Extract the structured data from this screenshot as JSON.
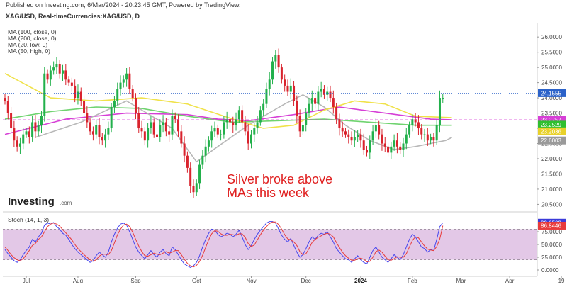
{
  "header": {
    "published": "Published on Investing.com, 6/Mar/2024 - 20:23:45 GMT, Powered by TradingView.",
    "symbol": "XAG/USD, Real-timeCurrencies:XAG/USD, D"
  },
  "indicators": [
    "MA (100, close, 0)",
    "MA (200, close, 0)",
    "MA (20, low, 0)",
    "MA (50, high, 0)"
  ],
  "annotation": {
    "line1": "Silver broke above",
    "line2": "MAs this week"
  },
  "logo": {
    "word": "Investing",
    "domain": ".com"
  },
  "colors": {
    "bull": "#22b04b",
    "bear": "#d9232d",
    "ma100": "#d63fd6",
    "ma200": "#6fd36f",
    "ma20": "#b8b8b8",
    "ma50": "#f0e24a",
    "annotation": "#e02020",
    "stoch_k": "#4444ee",
    "stoch_d": "#e83b3b",
    "stoch_band": "#d9b6df"
  },
  "chart_data": [
    {
      "type": "candlestick",
      "title": "XAG/USD, Real-timeCurrencies:XAG/USD, D",
      "x_labels": [
        "Jul",
        "Aug",
        "Sep",
        "Oct",
        "Nov",
        "Dec",
        "2024",
        "Feb",
        "Mar",
        "Apr",
        "19"
      ],
      "y_ticks": [
        "20.5000",
        "21.0000",
        "21.5000",
        "22.0000",
        "22.5000",
        "23.0000",
        "23.5000",
        "24.0000",
        "24.5000",
        "25.0000",
        "25.5000",
        "26.0000"
      ],
      "ylim": [
        20.3,
        26.4
      ],
      "grid": true,
      "price_tags": [
        {
          "label": "24.1555",
          "value": 24.1555,
          "color": "#2b62c9"
        },
        {
          "label": "23.2757",
          "value": 23.2757,
          "color": "#d63fd6"
        },
        {
          "label": "23.2529",
          "value": 23.12,
          "color": "#2fbf2f"
        },
        {
          "label": "23.2036",
          "value": 22.9,
          "color": "#e8d12a"
        },
        {
          "label": "22.6003",
          "value": 22.6003,
          "color": "#9a9a9a"
        }
      ],
      "series": [
        {
          "name": "XAG/USD",
          "kind": "close",
          "values": [
            23.9,
            23.5,
            23.0,
            22.6,
            22.4,
            22.5,
            22.8,
            22.9,
            22.7,
            23.2,
            22.9,
            23.1,
            23.4,
            24.8,
            24.6,
            24.9,
            25.0,
            25.1,
            24.8,
            24.9,
            24.6,
            24.5,
            24.4,
            24.0,
            24.2,
            23.9,
            23.5,
            23.2,
            22.9,
            22.8,
            23.1,
            22.7,
            22.6,
            22.8,
            23.0,
            23.7,
            23.9,
            24.3,
            24.5,
            24.6,
            24.8,
            24.3,
            24.0,
            23.5,
            23.0,
            22.9,
            22.6,
            23.0,
            23.2,
            22.8,
            22.7,
            23.1,
            23.2,
            22.9,
            22.8,
            23.4,
            23.3,
            22.9,
            22.5,
            22.1,
            21.7,
            21.1,
            20.9,
            21.2,
            21.8,
            22.1,
            22.4,
            22.6,
            22.9,
            23.0,
            22.8,
            22.8,
            23.2,
            23.3,
            23.2,
            23.1,
            23.3,
            23.6,
            23.2,
            22.9,
            22.5,
            22.8,
            23.0,
            23.2,
            23.6,
            23.8,
            24.3,
            24.6,
            25.2,
            25.4,
            25.0,
            24.6,
            24.4,
            24.2,
            24.4,
            23.9,
            23.4,
            22.9,
            23.1,
            23.5,
            23.8,
            24.0,
            23.8,
            24.2,
            24.3,
            24.1,
            24.2,
            24.0,
            23.7,
            23.3,
            23.0,
            22.9,
            22.8,
            22.7,
            22.6,
            22.7,
            22.8,
            22.6,
            22.3,
            22.2,
            22.6,
            22.9,
            23.1,
            22.8,
            22.5,
            22.4,
            22.2,
            22.4,
            22.6,
            22.4,
            22.3,
            22.5,
            22.8,
            23.1,
            23.3,
            23.2,
            23.0,
            22.8,
            22.8,
            22.6,
            22.7,
            22.6,
            23.1,
            24.0,
            24.0
          ],
          "x_start": 0
        },
        {
          "name": "MA (100, close, 0)",
          "x": [
            0,
            20,
            40,
            60,
            70,
            80,
            95,
            110,
            125,
            140,
            147
          ],
          "values": [
            22.8,
            23.3,
            23.5,
            23.45,
            23.3,
            23.25,
            23.45,
            23.7,
            23.5,
            23.3,
            23.28
          ]
        },
        {
          "name": "MA (200, close, 0)",
          "x": [
            0,
            15,
            30,
            45,
            60,
            75,
            90,
            105,
            120,
            135,
            147
          ],
          "values": [
            23.3,
            23.55,
            23.7,
            23.65,
            23.4,
            23.2,
            23.25,
            23.3,
            23.2,
            23.1,
            23.1
          ]
        },
        {
          "name": "MA (20, low, 0)",
          "x": [
            10,
            25,
            40,
            55,
            63,
            70,
            80,
            92,
            98,
            105,
            112,
            120,
            128,
            135,
            140,
            145,
            147
          ],
          "values": [
            22.7,
            23.2,
            23.9,
            23.0,
            21.9,
            22.4,
            23.1,
            23.8,
            24.1,
            23.7,
            23.1,
            22.6,
            22.3,
            22.4,
            22.5,
            22.6,
            22.7
          ]
        },
        {
          "name": "MA (50, high, 0)",
          "x": [
            0,
            15,
            30,
            45,
            60,
            75,
            85,
            95,
            105,
            115,
            125,
            135,
            147
          ],
          "values": [
            24.8,
            24.0,
            23.9,
            24.0,
            23.8,
            23.3,
            23.0,
            23.1,
            23.6,
            23.9,
            23.8,
            23.4,
            23.35
          ]
        }
      ]
    },
    {
      "type": "line",
      "title": "Stoch (14, 1, 3)",
      "y_ticks": [
        "0.0000",
        "25.0000",
        "50.0000",
        "75.0000"
      ],
      "ylim": [
        0,
        100
      ],
      "band": [
        20,
        80
      ],
      "price_tags": [
        {
          "label": "92.6509",
          "value": 92.6509,
          "color": "#3b3bd9"
        },
        {
          "label": "86.8446",
          "value": 86.8446,
          "color": "#e83b3b"
        }
      ],
      "series": [
        {
          "name": "%K",
          "values": [
            40,
            32,
            25,
            18,
            15,
            20,
            30,
            38,
            45,
            60,
            55,
            65,
            72,
            88,
            92,
            90,
            93,
            85,
            80,
            72,
            68,
            60,
            50,
            42,
            35,
            30,
            25,
            20,
            15,
            18,
            28,
            35,
            30,
            25,
            35,
            55,
            70,
            82,
            90,
            92,
            88,
            75,
            60,
            45,
            35,
            28,
            22,
            30,
            38,
            30,
            25,
            35,
            40,
            32,
            28,
            45,
            40,
            30,
            20,
            12,
            8,
            5,
            8,
            15,
            28,
            45,
            60,
            72,
            80,
            78,
            70,
            65,
            68,
            72,
            70,
            65,
            70,
            78,
            65,
            50,
            40,
            48,
            60,
            70,
            78,
            85,
            92,
            95,
            95,
            92,
            80,
            68,
            60,
            55,
            62,
            48,
            35,
            25,
            30,
            42,
            55,
            65,
            60,
            68,
            72,
            70,
            75,
            65,
            55,
            42,
            35,
            28,
            22,
            20,
            15,
            22,
            28,
            20,
            15,
            12,
            25,
            38,
            45,
            35,
            25,
            20,
            15,
            22,
            30,
            25,
            20,
            30,
            45,
            60,
            70,
            65,
            55,
            45,
            42,
            35,
            40,
            38,
            60,
            85,
            92.65
          ]
        },
        {
          "name": "%D",
          "values": [
            45,
            38,
            30,
            24,
            20,
            18,
            22,
            30,
            38,
            48,
            52,
            60,
            65,
            75,
            85,
            90,
            92,
            90,
            86,
            79,
            73,
            66,
            59,
            50,
            42,
            36,
            30,
            25,
            20,
            17,
            20,
            27,
            31,
            31,
            30,
            38,
            53,
            69,
            80,
            88,
            90,
            85,
            74,
            60,
            47,
            36,
            28,
            27,
            30,
            33,
            31,
            30,
            33,
            36,
            33,
            35,
            38,
            38,
            30,
            21,
            13,
            8,
            6,
            9,
            17,
            29,
            44,
            59,
            71,
            77,
            76,
            71,
            68,
            68,
            70,
            69,
            68,
            71,
            71,
            64,
            52,
            46,
            49,
            59,
            69,
            78,
            85,
            91,
            94,
            94,
            89,
            80,
            69,
            61,
            59,
            55,
            48,
            36,
            30,
            32,
            42,
            54,
            60,
            64,
            67,
            70,
            72,
            70,
            65,
            54,
            44,
            35,
            28,
            23,
            19,
            19,
            22,
            23,
            21,
            16,
            17,
            25,
            36,
            39,
            35,
            27,
            20,
            19,
            22,
            26,
            25,
            25,
            32,
            45,
            58,
            65,
            63,
            55,
            47,
            41,
            39,
            38,
            46,
            61,
            86.84
          ]
        }
      ]
    }
  ]
}
